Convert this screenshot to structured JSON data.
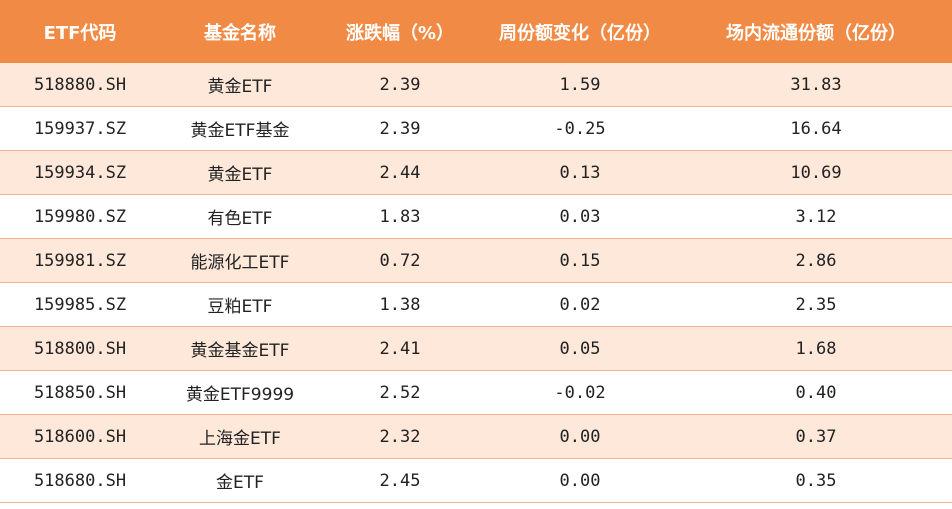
{
  "table": {
    "headers": [
      "ETF代码",
      "基金名称",
      "涨跌幅（%）",
      "周份额变化（亿份）",
      "场内流通份额（亿份）"
    ],
    "rows": [
      [
        "518880.SH",
        "黄金ETF",
        "2.39",
        "1.59",
        "31.83"
      ],
      [
        "159937.SZ",
        "黄金ETF基金",
        "2.39",
        "-0.25",
        "16.64"
      ],
      [
        "159934.SZ",
        "黄金ETF",
        "2.44",
        "0.13",
        "10.69"
      ],
      [
        "159980.SZ",
        "有色ETF",
        "1.83",
        "0.03",
        "3.12"
      ],
      [
        "159981.SZ",
        "能源化工ETF",
        "0.72",
        "0.15",
        "2.86"
      ],
      [
        "159985.SZ",
        "豆粕ETF",
        "1.38",
        "0.02",
        "2.35"
      ],
      [
        "518800.SH",
        "黄金基金ETF",
        "2.41",
        "0.05",
        "1.68"
      ],
      [
        "518850.SH",
        "黄金ETF9999",
        "2.52",
        "-0.02",
        "0.40"
      ],
      [
        "518600.SH",
        "上海金ETF",
        "2.32",
        "0.00",
        "0.37"
      ],
      [
        "518680.SH",
        "金ETF",
        "2.45",
        "0.00",
        "0.35"
      ]
    ]
  },
  "colors": {
    "header_bg": "#f08a45",
    "row_alt_bg": "#fde8da",
    "row_border": "#f2b48a"
  }
}
